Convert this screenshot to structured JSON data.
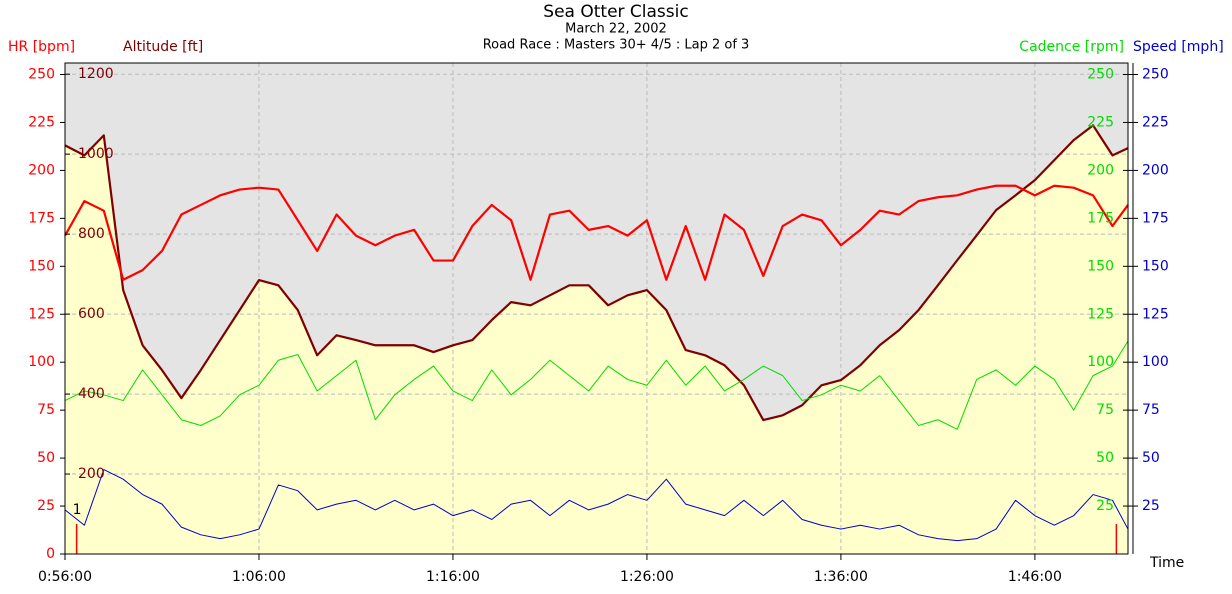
{
  "chart_data": {
    "type": "line",
    "title": "Sea Otter Classic",
    "subtitle": "March 22, 2002",
    "subtitle2": "Road Race : Masters 30+ 4/5 : Lap 2 of 3",
    "x_label": "Time",
    "xlim": [
      56,
      110.8
    ],
    "xticks": [
      {
        "value": 56,
        "label": "0:56:00"
      },
      {
        "value": 66,
        "label": "1:06:00"
      },
      {
        "value": 76,
        "label": "1:16:00"
      },
      {
        "value": 86,
        "label": "1:26:00"
      },
      {
        "value": 96,
        "label": "1:36:00"
      },
      {
        "value": 106,
        "label": "1:46:00"
      }
    ],
    "ylim": [
      0,
      256
    ],
    "y_label": "HR [bpm]",
    "yticks": [
      0,
      25,
      50,
      75,
      100,
      125,
      150,
      175,
      200,
      225,
      250
    ],
    "y2lim": [
      0,
      1228
    ],
    "y2_label": "Altitude [ft]",
    "y2ticks": [
      200,
      400,
      600,
      800,
      1000,
      1200
    ],
    "y3lim": [
      0,
      256
    ],
    "y3_label": "Cadence [rpm]",
    "y3ticks": [
      25,
      50,
      75,
      100,
      125,
      150,
      175,
      200,
      225,
      250
    ],
    "y4lim": [
      0,
      256
    ],
    "y4_label": "Speed [mph]",
    "y4ticks": [
      25,
      50,
      75,
      100,
      125,
      150,
      175,
      200,
      225,
      250
    ],
    "grid": true,
    "background": "#e4e4e4",
    "lap_markers": [
      56.6,
      110.2
    ],
    "lap_marker_color": "#ff0000",
    "annotation": {
      "text": "1",
      "x": 56.6,
      "y": 23
    },
    "x": [
      56,
      57,
      58,
      59,
      60,
      61,
      62,
      63,
      64,
      65,
      66,
      67,
      68,
      69,
      70,
      71,
      72,
      73,
      74,
      75,
      76,
      77,
      78,
      79,
      80,
      81,
      82,
      83,
      84,
      85,
      86,
      87,
      88,
      89,
      90,
      91,
      92,
      93,
      94,
      95,
      96,
      97,
      98,
      99,
      100,
      101,
      102,
      103,
      104,
      105,
      106,
      107,
      108,
      109,
      110,
      110.8
    ],
    "series": [
      {
        "name": "Altitude [ft]",
        "axis": "y2",
        "color": "#800000",
        "fill": "#ffffcc",
        "values": [
          1022,
          997,
          1047,
          660,
          522,
          460,
          390,
          460,
          535,
          610,
          685,
          672,
          610,
          497,
          547,
          535,
          522,
          522,
          522,
          505,
          522,
          535,
          585,
          630,
          622,
          647,
          672,
          672,
          622,
          647,
          660,
          610,
          510,
          497,
          472,
          422,
          335,
          347,
          372,
          422,
          435,
          472,
          522,
          560,
          610,
          672,
          735,
          797,
          860,
          897,
          935,
          985,
          1035,
          1072,
          997,
          1015
        ]
      },
      {
        "name": "HR [bpm]",
        "axis": "y",
        "color": "#ff0000",
        "values": [
          166,
          184,
          179,
          143,
          148,
          158,
          177,
          182,
          187,
          190,
          191,
          190,
          174,
          158,
          177,
          166,
          161,
          166,
          169,
          153,
          153,
          171,
          182,
          174,
          143,
          177,
          179,
          169,
          171,
          166,
          174,
          143,
          171,
          143,
          177,
          169,
          145,
          171,
          177,
          174,
          161,
          169,
          179,
          177,
          184,
          186,
          187,
          190,
          192,
          192,
          187,
          192,
          191,
          187,
          171,
          182
        ]
      },
      {
        "name": "Cadence [rpm]",
        "axis": "y3",
        "color": "#00dd00",
        "values": [
          80,
          85,
          83,
          80,
          96,
          83,
          70,
          67,
          72,
          83,
          88,
          101,
          104,
          85,
          93,
          101,
          70,
          83,
          91,
          98,
          85,
          80,
          96,
          83,
          91,
          101,
          93,
          85,
          98,
          91,
          88,
          101,
          88,
          98,
          85,
          91,
          98,
          93,
          80,
          83,
          88,
          85,
          93,
          80,
          67,
          70,
          65,
          91,
          96,
          88,
          98,
          91,
          75,
          93,
          98,
          111
        ]
      },
      {
        "name": "Speed [mph]",
        "axis": "y4",
        "color": "#0000cc",
        "values": [
          23,
          15,
          44,
          39,
          31,
          26,
          14,
          10,
          8,
          10,
          13,
          36,
          33,
          23,
          26,
          28,
          23,
          28,
          23,
          26,
          20,
          23,
          18,
          26,
          28,
          20,
          28,
          23,
          26,
          31,
          28,
          39,
          26,
          23,
          20,
          28,
          20,
          28,
          18,
          15,
          13,
          15,
          13,
          15,
          10,
          8,
          7,
          8,
          13,
          28,
          20,
          15,
          20,
          31,
          28,
          13
        ]
      }
    ]
  }
}
